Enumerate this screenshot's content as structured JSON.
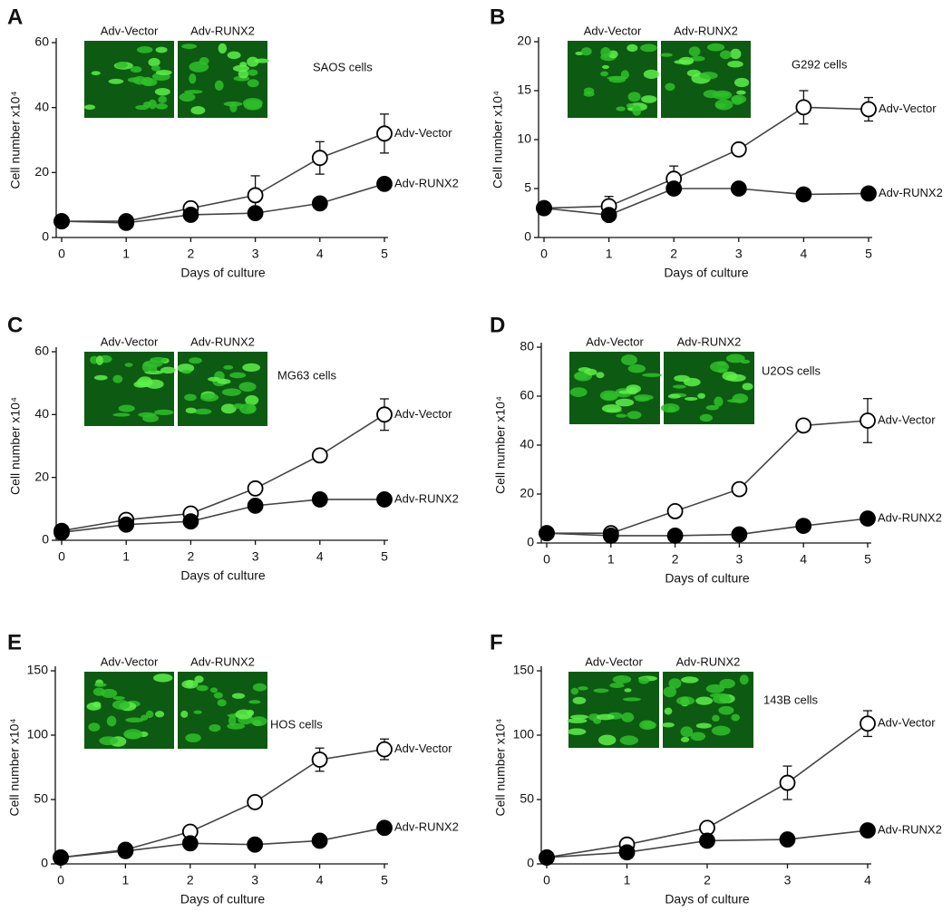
{
  "chart_data": [
    {
      "type": "line",
      "panel": "A",
      "annotation": "SAOS cells",
      "image_labels": [
        "Adv-Vector",
        "Adv-RUNX2"
      ],
      "xlabel": "Days of culture",
      "ylabel": "Cell number x10⁴",
      "x": [
        0,
        1,
        2,
        3,
        4,
        5
      ],
      "xlim": [
        0,
        5
      ],
      "xticks": [
        0,
        1,
        2,
        3,
        4,
        5
      ],
      "ylim": [
        0,
        60
      ],
      "yticks": [
        0,
        20,
        40,
        60
      ],
      "series": [
        {
          "name": "Adv-Vector",
          "color": "#ffffff",
          "values": [
            5,
            5,
            9,
            13,
            24.5,
            32
          ],
          "errors": [
            1,
            1.5,
            2,
            6,
            5,
            6
          ]
        },
        {
          "name": "Adv-RUNX2",
          "color": "#000000",
          "values": [
            5,
            4.5,
            7,
            7.5,
            10.5,
            16.5
          ]
        }
      ]
    },
    {
      "type": "line",
      "panel": "B",
      "annotation": "G292 cells",
      "image_labels": [
        "Adv-Vector",
        "Adv-RUNX2"
      ],
      "xlabel": "Days of culture",
      "ylabel": "Cell number x10⁴",
      "x": [
        0,
        1,
        2,
        3,
        4,
        5
      ],
      "xlim": [
        0,
        5
      ],
      "xticks": [
        0,
        1,
        2,
        3,
        4,
        5
      ],
      "ylim": [
        0,
        20
      ],
      "yticks": [
        0,
        5,
        10,
        15,
        20
      ],
      "series": [
        {
          "name": "Adv-Vector",
          "color": "#ffffff",
          "values": [
            3,
            3.2,
            6,
            9,
            13.3,
            13.1
          ],
          "errors": [
            0.5,
            1,
            1.3,
            0.5,
            1.7,
            1.2
          ]
        },
        {
          "name": "Adv-RUNX2",
          "color": "#000000",
          "values": [
            3,
            2.3,
            5,
            5,
            4.4,
            4.5
          ]
        }
      ]
    },
    {
      "type": "line",
      "panel": "C",
      "annotation": "MG63 cells",
      "image_labels": [
        "Adv-Vector",
        "Adv-RUNX2"
      ],
      "xlabel": "Days of culture",
      "ylabel": "Cell number x10⁴",
      "x": [
        0,
        1,
        2,
        3,
        4,
        5
      ],
      "xlim": [
        0,
        5
      ],
      "xticks": [
        0,
        1,
        2,
        3,
        4,
        5
      ],
      "ylim": [
        0,
        60
      ],
      "yticks": [
        0,
        20,
        40,
        60
      ],
      "series": [
        {
          "name": "Adv-Vector",
          "color": "#ffffff",
          "values": [
            3,
            6.5,
            8.5,
            16.5,
            27,
            40
          ],
          "errors": [
            0.5,
            1,
            1,
            1.5,
            1.5,
            5
          ]
        },
        {
          "name": "Adv-RUNX2",
          "color": "#000000",
          "values": [
            2.5,
            5,
            6,
            11,
            13,
            13
          ]
        }
      ]
    },
    {
      "type": "line",
      "panel": "D",
      "annotation": "U2OS cells",
      "image_labels": [
        "Adv-Vector",
        "Adv-RUNX2"
      ],
      "xlabel": "Days of culture",
      "ylabel": "Cell number x10⁴",
      "x": [
        0,
        1,
        2,
        3,
        4,
        5
      ],
      "xlim": [
        0,
        5
      ],
      "xticks": [
        0,
        1,
        2,
        3,
        4,
        5
      ],
      "ylim": [
        0,
        80
      ],
      "yticks": [
        0,
        20,
        40,
        60,
        80
      ],
      "series": [
        {
          "name": "Adv-Vector",
          "color": "#ffffff",
          "values": [
            4,
            4,
            13,
            22,
            48,
            50
          ],
          "errors": [
            1,
            1,
            2,
            2,
            2,
            9
          ]
        },
        {
          "name": "Adv-RUNX2",
          "color": "#000000",
          "values": [
            4,
            3,
            3,
            3.5,
            7,
            10
          ]
        }
      ]
    },
    {
      "type": "line",
      "panel": "E",
      "annotation": "HOS cells",
      "image_labels": [
        "Adv-Vector",
        "Adv-RUNX2"
      ],
      "xlabel": "Days of culture",
      "ylabel": "Cell number x10⁴",
      "x": [
        0,
        1,
        2,
        3,
        4,
        5
      ],
      "xlim": [
        0,
        5
      ],
      "xticks": [
        0,
        1,
        2,
        3,
        4,
        5
      ],
      "ylim": [
        0,
        150
      ],
      "yticks": [
        0,
        50,
        100,
        150
      ],
      "series": [
        {
          "name": "Adv-Vector",
          "color": "#ffffff",
          "values": [
            5,
            11,
            25,
            48,
            81,
            89
          ],
          "errors": [
            1,
            2,
            3,
            4,
            9,
            8
          ]
        },
        {
          "name": "Adv-RUNX2",
          "color": "#000000",
          "values": [
            5,
            10,
            16,
            15,
            18,
            28
          ]
        }
      ]
    },
    {
      "type": "line",
      "panel": "F",
      "annotation": "143B cells",
      "image_labels": [
        "Adv-Vector",
        "Adv-RUNX2"
      ],
      "xlabel": "Days of culture",
      "ylabel": "Cell number x10⁴",
      "x": [
        0,
        1,
        2,
        3,
        4
      ],
      "xlim": [
        0,
        4
      ],
      "xticks": [
        0,
        1,
        2,
        3,
        4
      ],
      "ylim": [
        0,
        150
      ],
      "yticks": [
        0,
        50,
        100,
        150
      ],
      "series": [
        {
          "name": "Adv-Vector",
          "color": "#ffffff",
          "values": [
            5,
            15,
            28,
            63,
            109
          ],
          "errors": [
            1,
            2,
            4,
            13,
            10
          ]
        },
        {
          "name": "Adv-RUNX2",
          "color": "#000000",
          "values": [
            5,
            9,
            18,
            19,
            26
          ]
        }
      ]
    }
  ]
}
